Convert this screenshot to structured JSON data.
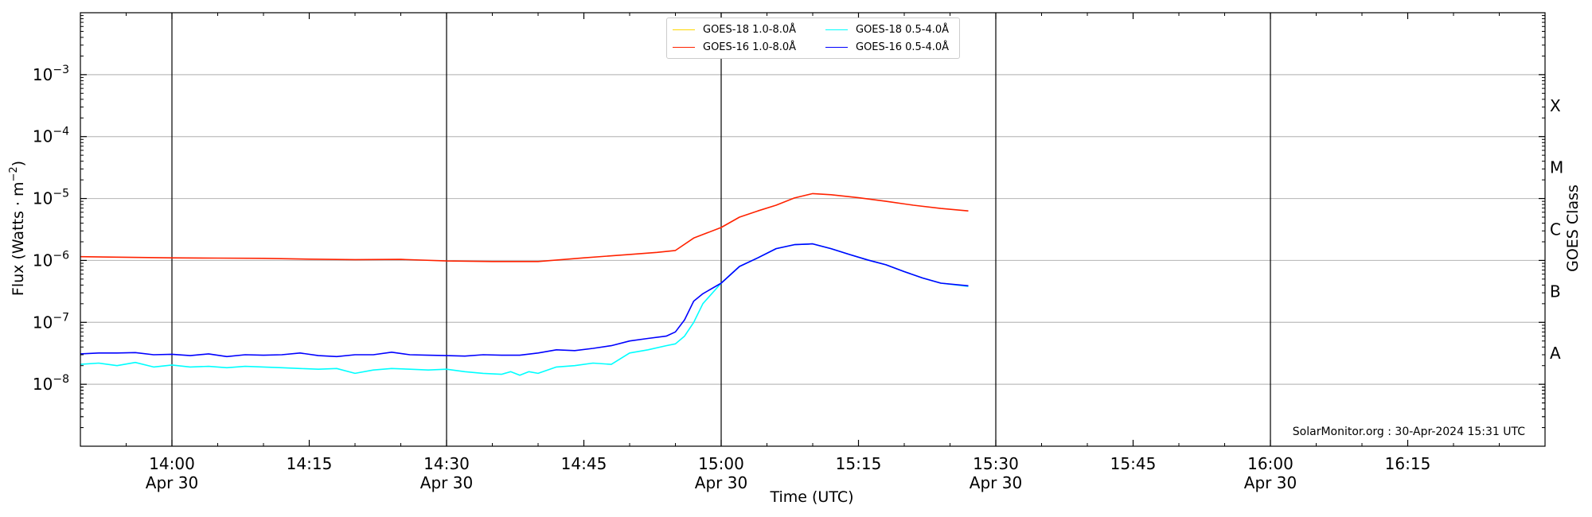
{
  "chart_data": {
    "type": "line",
    "ylabel": "Flux (Watts · m",
    "ylabel_sup": "−2",
    "ylabel_end": ")",
    "xlabel": "Time (UTC)",
    "right_label": "GOES Class",
    "y_scale": "log",
    "ylim": [
      "1e-9",
      "1e-2"
    ],
    "xlim": [
      "13:50",
      "16:30"
    ],
    "y_ticks": [
      {
        "base": "10",
        "exp": "−8"
      },
      {
        "base": "10",
        "exp": "−7"
      },
      {
        "base": "10",
        "exp": "−6"
      },
      {
        "base": "10",
        "exp": "−5"
      },
      {
        "base": "10",
        "exp": "−4"
      },
      {
        "base": "10",
        "exp": "−3"
      }
    ],
    "y_tick_exponents": [
      -8,
      -7,
      -6,
      -5,
      -4,
      -3
    ],
    "x_ticks": [
      {
        "time": "14:00",
        "label": "14:00",
        "date": "Apr 30"
      },
      {
        "time": "14:15",
        "label": "14:15",
        "date": ""
      },
      {
        "time": "14:30",
        "label": "14:30",
        "date": "Apr 30"
      },
      {
        "time": "14:45",
        "label": "14:45",
        "date": ""
      },
      {
        "time": "15:00",
        "label": "15:00",
        "date": "Apr 30"
      },
      {
        "time": "15:15",
        "label": "15:15",
        "date": ""
      },
      {
        "time": "15:30",
        "label": "15:30",
        "date": "Apr 30"
      },
      {
        "time": "15:45",
        "label": "15:45",
        "date": ""
      },
      {
        "time": "16:00",
        "label": "16:00",
        "date": "Apr 30"
      },
      {
        "time": "16:15",
        "label": "16:15",
        "date": ""
      }
    ],
    "vertical_lines": [
      "14:00",
      "14:30",
      "15:00",
      "15:30",
      "16:00"
    ],
    "goes_classes": [
      {
        "label": "A",
        "flux": "1e-8"
      },
      {
        "label": "B",
        "flux": "1e-7"
      },
      {
        "label": "C",
        "flux": "1e-6"
      },
      {
        "label": "M",
        "flux": "1e-5"
      },
      {
        "label": "X",
        "flux": "1e-4"
      }
    ],
    "grid": "horizontal at decades",
    "legend_position": "top-center",
    "series": [
      {
        "name": "GOES-18 1.0-8.0Å",
        "color": "#ffd700",
        "draw": false,
        "x": [
          "13:50",
          "14:00",
          "14:10",
          "14:20",
          "14:30",
          "14:40",
          "14:50",
          "14:55",
          "15:00",
          "15:03",
          "15:06",
          "15:09",
          "15:12",
          "15:15",
          "15:18",
          "15:21",
          "15:24",
          "15:27"
        ],
        "y": [
          "1.15e-6",
          "1.1e-6",
          "1.08e-6",
          "1.03e-6",
          "9.7e-7",
          "9.6e-7",
          "1.25e-6",
          "1.5e-6",
          "3.4e-6",
          "6.0e-6",
          "8.8e-6",
          "1.2e-5",
          "1.15e-5",
          "1.02e-5",
          "9.0e-6",
          "7.8e-6",
          "6.9e-6",
          "6.3e-6"
        ]
      },
      {
        "name": "GOES-16 1.0-8.0Å",
        "color": "#ff2200",
        "draw": true,
        "x": [
          "13:50",
          "14:00",
          "14:05",
          "14:10",
          "14:15",
          "14:20",
          "14:25",
          "14:30",
          "14:35",
          "14:40",
          "14:45",
          "14:50",
          "14:53",
          "14:55",
          "14:57",
          "15:00",
          "15:02",
          "15:04",
          "15:06",
          "15:08",
          "15:10",
          "15:12",
          "15:15",
          "15:18",
          "15:21",
          "15:24",
          "15:27"
        ],
        "y": [
          "1.15e-6",
          "1.1e-6",
          "1.09e-6",
          "1.08e-6",
          "1.05e-6",
          "1.03e-6",
          "1.04e-6",
          "9.8e-7",
          "9.6e-7",
          "9.6e-7",
          "1.1e-6",
          "1.25e-6",
          "1.35e-6",
          "1.45e-6",
          "2.3e-6",
          "3.4e-6",
          "5.0e-6",
          "6.3e-6",
          "7.8e-6",
          "1.02e-5",
          "1.2e-5",
          "1.15e-5",
          "1.03e-5",
          "9.0e-6",
          "7.8e-6",
          "6.9e-6",
          "6.3e-6"
        ]
      },
      {
        "name": "GOES-18 0.5-4.0Å",
        "color": "#00ffff",
        "draw": true,
        "x": [
          "13:50",
          "13:52",
          "13:54",
          "13:56",
          "13:58",
          "14:00",
          "14:02",
          "14:04",
          "14:06",
          "14:08",
          "14:10",
          "14:12",
          "14:14",
          "14:16",
          "14:18",
          "14:20",
          "14:22",
          "14:24",
          "14:26",
          "14:28",
          "14:30",
          "14:32",
          "14:34",
          "14:36",
          "14:37",
          "14:38",
          "14:39",
          "14:40",
          "14:42",
          "14:44",
          "14:46",
          "14:48",
          "14:50",
          "14:52",
          "14:54",
          "14:55",
          "14:56",
          "14:57",
          "14:58",
          "15:00",
          "15:02",
          "15:04",
          "15:06",
          "15:08",
          "15:10",
          "15:12",
          "15:14",
          "15:16",
          "15:18",
          "15:20",
          "15:22",
          "15:24",
          "15:27"
        ],
        "y": [
          "2.1e-8",
          "2.2e-8",
          "2.0e-8",
          "2.25e-8",
          "1.9e-8",
          "2.05e-8",
          "1.9e-8",
          "1.95e-8",
          "1.85e-8",
          "1.95e-8",
          "1.9e-8",
          "1.85e-8",
          "1.8e-8",
          "1.75e-8",
          "1.8e-8",
          "1.5e-8",
          "1.7e-8",
          "1.8e-8",
          "1.75e-8",
          "1.7e-8",
          "1.75e-8",
          "1.6e-8",
          "1.5e-8",
          "1.45e-8",
          "1.6e-8",
          "1.4e-8",
          "1.6e-8",
          "1.5e-8",
          "1.9e-8",
          "2.0e-8",
          "2.2e-8",
          "2.1e-8",
          "3.2e-8",
          "3.6e-8",
          "4.2e-8",
          "4.5e-8",
          "6.0e-8",
          "1.0e-7",
          "2.0e-7",
          "4.3e-7",
          "8.0e-7",
          "1.1e-6",
          "1.55e-6",
          "1.8e-6",
          "1.85e-6",
          "1.55e-6",
          "1.25e-6",
          "1.02e-6",
          "8.5e-7",
          "6.6e-7",
          "5.2e-7",
          "4.3e-7",
          "3.8e-7"
        ]
      },
      {
        "name": "GOES-16 0.5-4.0Å",
        "color": "#0000ff",
        "draw": true,
        "x": [
          "13:50",
          "13:52",
          "13:54",
          "13:56",
          "13:58",
          "14:00",
          "14:02",
          "14:04",
          "14:06",
          "14:08",
          "14:10",
          "14:12",
          "14:14",
          "14:16",
          "14:18",
          "14:20",
          "14:22",
          "14:24",
          "14:26",
          "14:28",
          "14:30",
          "14:32",
          "14:34",
          "14:36",
          "14:38",
          "14:40",
          "14:42",
          "14:44",
          "14:46",
          "14:48",
          "14:50",
          "14:52",
          "14:54",
          "14:55",
          "14:56",
          "14:57",
          "14:58",
          "15:00",
          "15:02",
          "15:04",
          "15:06",
          "15:08",
          "15:10",
          "15:12",
          "15:14",
          "15:16",
          "15:18",
          "15:20",
          "15:22",
          "15:24",
          "15:27"
        ],
        "y": [
          "3.1e-8",
          "3.2e-8",
          "3.2e-8",
          "3.25e-8",
          "3.0e-8",
          "3.05e-8",
          "2.9e-8",
          "3.1e-8",
          "2.8e-8",
          "3.0e-8",
          "2.95e-8",
          "3.0e-8",
          "3.2e-8",
          "2.9e-8",
          "2.8e-8",
          "3.0e-8",
          "3.0e-8",
          "3.3e-8",
          "3.0e-8",
          "2.95e-8",
          "2.9e-8",
          "2.85e-8",
          "3.0e-8",
          "2.95e-8",
          "2.95e-8",
          "3.2e-8",
          "3.6e-8",
          "3.5e-8",
          "3.8e-8",
          "4.2e-8",
          "5.0e-8",
          "5.5e-8",
          "6.0e-8",
          "7.0e-8",
          "1.1e-7",
          "2.2e-7",
          "2.9e-7",
          "4.3e-7",
          "8.0e-7",
          "1.1e-6",
          "1.55e-6",
          "1.8e-6",
          "1.85e-6",
          "1.55e-6",
          "1.25e-6",
          "1.02e-6",
          "8.5e-7",
          "6.6e-7",
          "5.2e-7",
          "4.3e-7",
          "3.9e-7"
        ]
      }
    ],
    "credit": "SolarMonitor.org : 30-Apr-2024 15:31 UTC"
  }
}
